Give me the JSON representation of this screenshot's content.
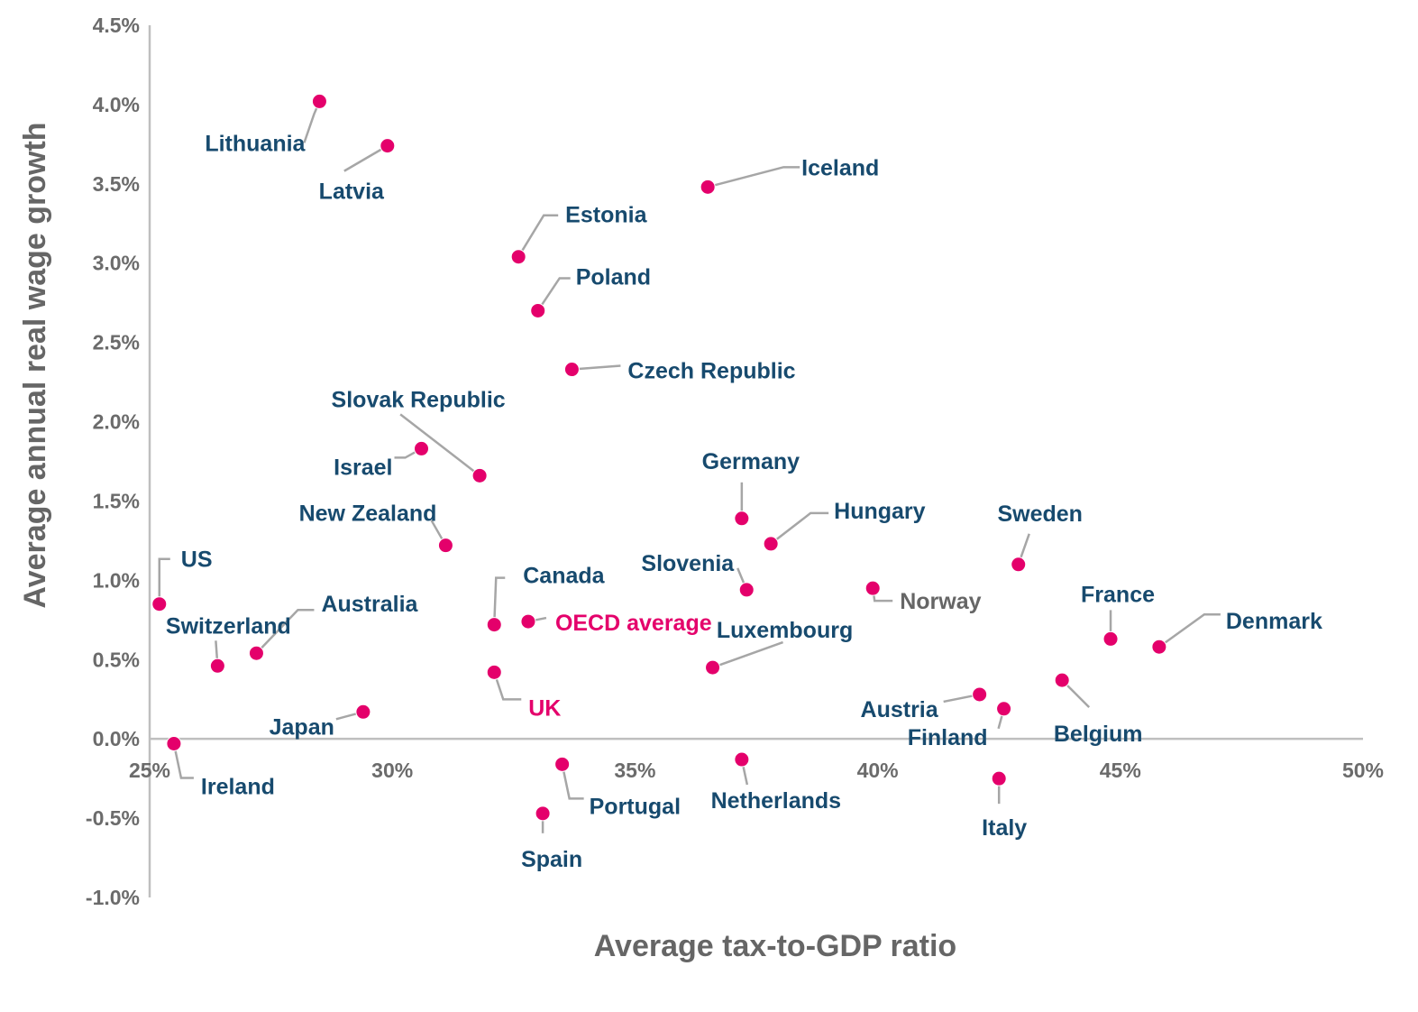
{
  "chart_data": {
    "type": "scatter",
    "title": "",
    "xlabel": "Average tax-to-GDP ratio",
    "ylabel": "Average annual real wage growth",
    "xlim": [
      25,
      50
    ],
    "ylim": [
      -1.0,
      4.5
    ],
    "x_ticks": [
      25,
      30,
      35,
      40,
      45,
      50
    ],
    "x_tick_labels": [
      "25%",
      "30%",
      "35%",
      "40%",
      "45%",
      "50%"
    ],
    "y_ticks": [
      4.5,
      4.0,
      3.5,
      3.0,
      2.5,
      2.0,
      1.5,
      1.0,
      0.5,
      0.0,
      -0.5,
      -1.0
    ],
    "y_tick_labels": [
      "4.5%",
      "4.0%",
      "3.5%",
      "3.0%",
      "2.5%",
      "2.0%",
      "1.5%",
      "1.0%",
      "0.5%",
      "0.0%",
      "-0.5%",
      "-1.0%"
    ],
    "grid": false,
    "colors": {
      "point": "#e4006b",
      "label": "#174a6e",
      "highlight": "#e4006b",
      "muted": "#666666",
      "leader": "#a6a6a6",
      "axis": "#bfbfbf"
    },
    "points": [
      {
        "name": "Lithuania",
        "x": 28.5,
        "y": 4.02
      },
      {
        "name": "Latvia",
        "x": 29.9,
        "y": 3.74
      },
      {
        "name": "Iceland",
        "x": 36.5,
        "y": 3.48
      },
      {
        "name": "Estonia",
        "x": 32.6,
        "y": 3.04
      },
      {
        "name": "Poland",
        "x": 33.0,
        "y": 2.7
      },
      {
        "name": "Czech Republic",
        "x": 33.7,
        "y": 2.33
      },
      {
        "name": "Slovak Republic",
        "x": 31.8,
        "y": 1.66
      },
      {
        "name": "Israel",
        "x": 30.6,
        "y": 1.83
      },
      {
        "name": "New Zealand",
        "x": 31.1,
        "y": 1.22
      },
      {
        "name": "Germany",
        "x": 37.2,
        "y": 1.39
      },
      {
        "name": "Hungary",
        "x": 37.8,
        "y": 1.23
      },
      {
        "name": "Slovenia",
        "x": 37.3,
        "y": 0.94
      },
      {
        "name": "Sweden",
        "x": 42.9,
        "y": 1.1
      },
      {
        "name": "US",
        "x": 25.2,
        "y": 0.85
      },
      {
        "name": "Norway",
        "x": 39.9,
        "y": 0.95
      },
      {
        "name": "Canada",
        "x": 32.1,
        "y": 0.72
      },
      {
        "name": "OECD average",
        "x": 32.8,
        "y": 0.74
      },
      {
        "name": "Australia",
        "x": 27.2,
        "y": 0.54
      },
      {
        "name": "Switzerland",
        "x": 26.4,
        "y": 0.46
      },
      {
        "name": "France",
        "x": 44.8,
        "y": 0.63
      },
      {
        "name": "Denmark",
        "x": 45.8,
        "y": 0.58
      },
      {
        "name": "Luxembourg",
        "x": 36.6,
        "y": 0.45
      },
      {
        "name": "UK",
        "x": 32.1,
        "y": 0.42
      },
      {
        "name": "Belgium",
        "x": 43.8,
        "y": 0.37
      },
      {
        "name": "Austria",
        "x": 42.1,
        "y": 0.28
      },
      {
        "name": "Finland",
        "x": 42.6,
        "y": 0.19
      },
      {
        "name": "Japan",
        "x": 29.4,
        "y": 0.17
      },
      {
        "name": "Ireland",
        "x": 25.5,
        "y": -0.03
      },
      {
        "name": "Netherlands",
        "x": 37.2,
        "y": -0.13
      },
      {
        "name": "Portugal",
        "x": 33.5,
        "y": -0.16
      },
      {
        "name": "Italy",
        "x": 42.5,
        "y": -0.25
      },
      {
        "name": "Spain",
        "x": 33.1,
        "y": -0.47
      }
    ]
  }
}
